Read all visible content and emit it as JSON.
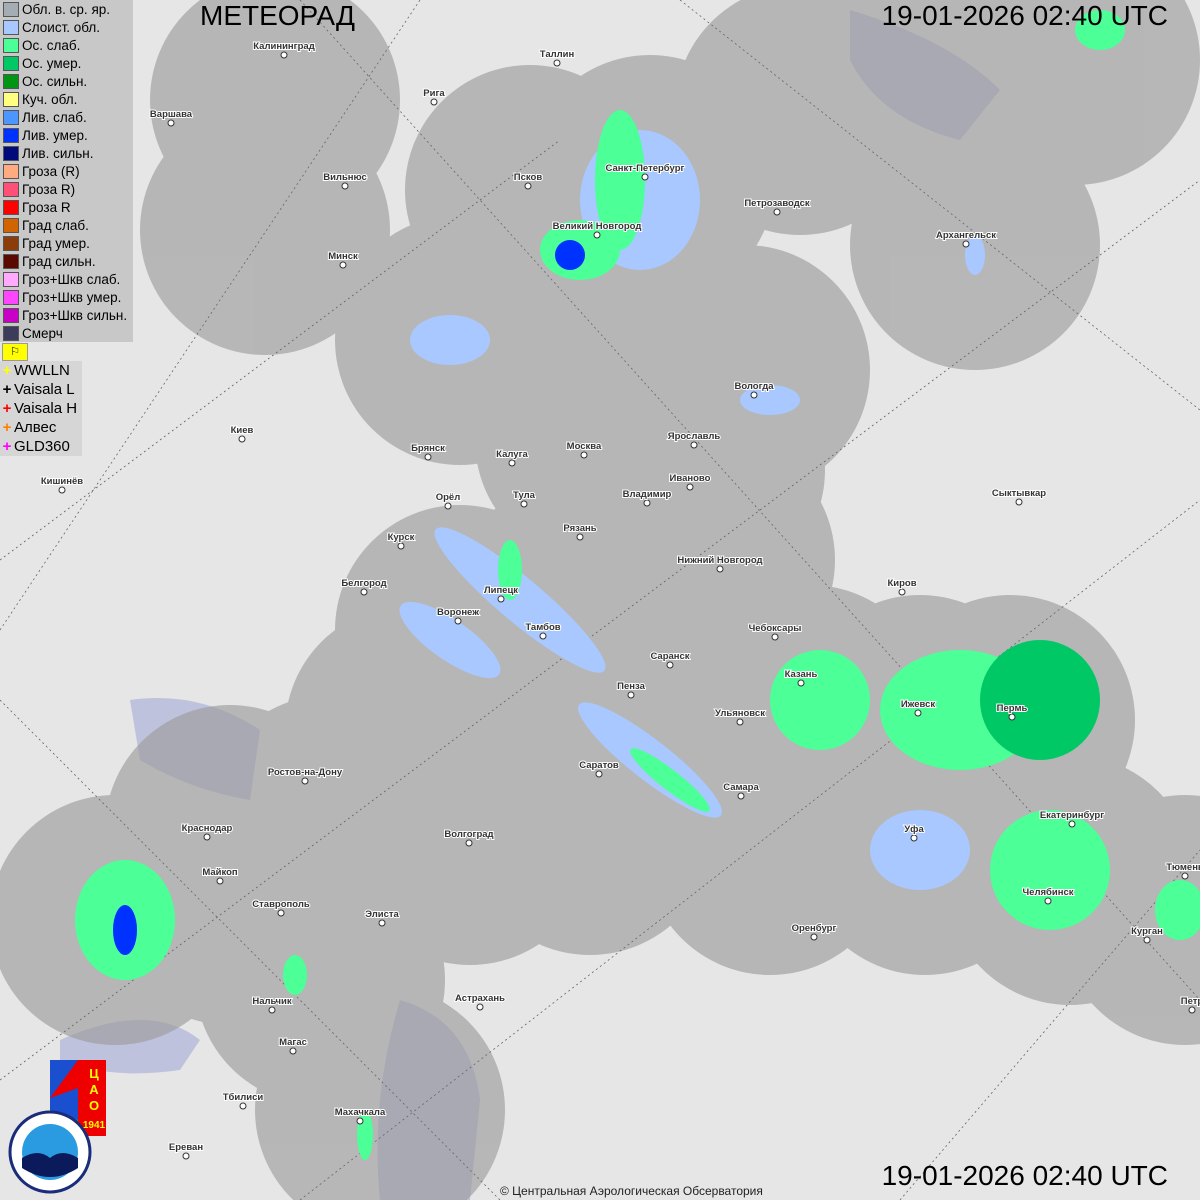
{
  "header": {
    "title": "МЕТЕОРАД",
    "timestamp_top": "19-01-2026  02:40 UTC",
    "timestamp_bottom": "19-01-2026  02:40 UTC"
  },
  "legend": [
    {
      "label": "Обл. в. ср. яр.",
      "color": "#a4adb4"
    },
    {
      "label": "Слоист. обл.",
      "color": "#a8c8ff"
    },
    {
      "label": "Ос. слаб.",
      "color": "#4cff96"
    },
    {
      "label": "Ос. умер.",
      "color": "#00c864"
    },
    {
      "label": "Ос. сильн.",
      "color": "#009614"
    },
    {
      "label": "Куч. обл.",
      "color": "#ffff80"
    },
    {
      "label": "Лив. слаб.",
      "color": "#4c96ff"
    },
    {
      "label": "Лив. умер.",
      "color": "#0032ff"
    },
    {
      "label": "Лив. сильн.",
      "color": "#000a78"
    },
    {
      "label": "Гроза (R)",
      "color": "#ffaa80"
    },
    {
      "label": "Гроза R)",
      "color": "#ff5078"
    },
    {
      "label": "Гроза R",
      "color": "#ff0000"
    },
    {
      "label": "Град слаб.",
      "color": "#d26400"
    },
    {
      "label": "Град умер.",
      "color": "#8c3c0a"
    },
    {
      "label": "Град сильн.",
      "color": "#5a0a00"
    },
    {
      "label": "Гроз+Шкв слаб.",
      "color": "#ffaaff"
    },
    {
      "label": "Гроз+Шкв умер.",
      "color": "#ff46ff"
    },
    {
      "label": "Гроз+Шкв сильн.",
      "color": "#c800c8"
    },
    {
      "label": "Смерч",
      "color": "#3c3c5a"
    }
  ],
  "lightning": [
    {
      "label": "WWLLN",
      "color": "#ffff00"
    },
    {
      "label": "Vaisala L",
      "color": "#000000"
    },
    {
      "label": "Vaisala H",
      "color": "#ff0000"
    },
    {
      "label": "Алвес",
      "color": "#ff8000"
    },
    {
      "label": "GLD360",
      "color": "#ff00ff"
    }
  ],
  "cities": [
    "Калининград",
    "Таллин",
    "Рига",
    "Варшава",
    "Вильнюс",
    "Псков",
    "Санкт-Петербург",
    "Петрозаводск",
    "Архангельск",
    "Великий Новгород",
    "Минск",
    "Вологда",
    "Киев",
    "Брянск",
    "Калуга",
    "Москва",
    "Ярославль",
    "Иваново",
    "Кишинёв",
    "Орёл",
    "Тула",
    "Владимир",
    "Сыктывкар",
    "Рязань",
    "Курск",
    "Нижний Новгород",
    "Киров",
    "Белгород",
    "Липецк",
    "Воронеж",
    "Чебоксары",
    "Тамбов",
    "Саранск",
    "Казань",
    "Пенза",
    "Ижевск",
    "Пермь",
    "Ульяновск",
    "Саратов",
    "Ростов-на-Дону",
    "Самара",
    "Екатеринбург",
    "Уфа",
    "Краснодар",
    "Волгоград",
    "Майкоп",
    "Челябинск",
    "Ставрополь",
    "Элиста",
    "Оренбург",
    "Тюмень",
    "Курган",
    "Нальчик",
    "Астрахань",
    "Петр",
    "Магас",
    "Тбилиси",
    "Махачкала",
    "Ереван"
  ],
  "logos": {
    "cao": "ЦАО 1941",
    "roshydromet": "РОСГИДРОМЕТ ROSHYDROMET"
  },
  "copyright": "© Центральная Аэрологическая Обсерватория"
}
